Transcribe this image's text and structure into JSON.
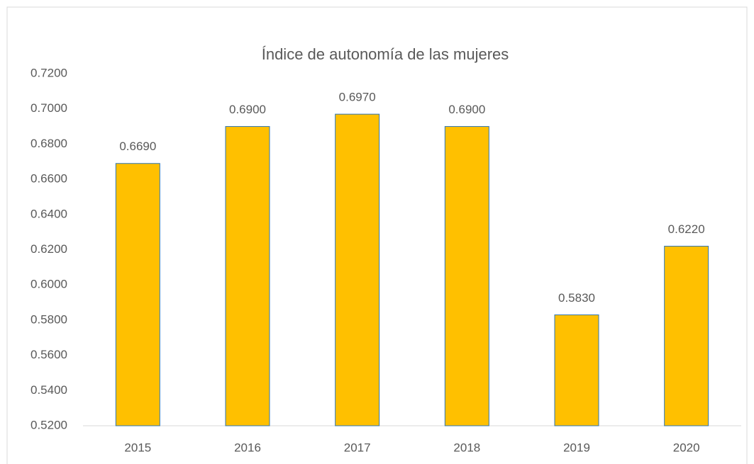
{
  "chart_data": {
    "type": "bar",
    "title": "Índice de autonomía de las mujeres",
    "categories": [
      "2015",
      "2016",
      "2017",
      "2018",
      "2019",
      "2020"
    ],
    "values": [
      0.669,
      0.69,
      0.697,
      0.69,
      0.583,
      0.622
    ],
    "value_labels": [
      "0.6690",
      "0.6900",
      "0.6970",
      "0.6900",
      "0.5830",
      "0.6220"
    ],
    "color": "#ffc000",
    "ylim": [
      0.52,
      0.72
    ],
    "yticks": [
      {
        "value": 0.52,
        "label": "0.5200"
      },
      {
        "value": 0.54,
        "label": "0.5400"
      },
      {
        "value": 0.56,
        "label": "0.5600"
      },
      {
        "value": 0.58,
        "label": "0.5800"
      },
      {
        "value": 0.6,
        "label": "0.6000"
      },
      {
        "value": 0.62,
        "label": "0.6200"
      },
      {
        "value": 0.64,
        "label": "0.6400"
      },
      {
        "value": 0.66,
        "label": "0.6600"
      },
      {
        "value": 0.68,
        "label": "0.6800"
      },
      {
        "value": 0.7,
        "label": "0.7000"
      },
      {
        "value": 0.72,
        "label": "0.7200"
      }
    ],
    "grid": false
  }
}
